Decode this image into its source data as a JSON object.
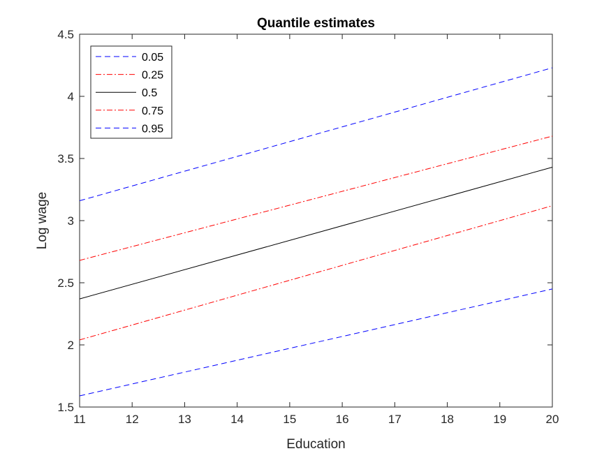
{
  "chart_data": {
    "type": "line",
    "title": "Quantile estimates",
    "xlabel": "Education",
    "ylabel": "Log wage",
    "xlim": [
      11,
      20
    ],
    "ylim": [
      1.5,
      4.5
    ],
    "x_ticks": [
      "11",
      "12",
      "13",
      "14",
      "15",
      "16",
      "17",
      "18",
      "19",
      "20"
    ],
    "y_ticks": [
      "1.5",
      "2",
      "2.5",
      "3",
      "3.5",
      "4",
      "4.5"
    ],
    "grid": false,
    "legend_position": "top-left",
    "x": [
      11,
      20
    ],
    "series": [
      {
        "name": "0.05",
        "values": [
          1.59,
          2.45
        ],
        "color": "#0000ff",
        "style": "dashed"
      },
      {
        "name": "0.25",
        "values": [
          2.04,
          3.12
        ],
        "color": "#ff0000",
        "style": "dashdot"
      },
      {
        "name": "0.5",
        "values": [
          2.37,
          3.43
        ],
        "color": "#000000",
        "style": "solid"
      },
      {
        "name": "0.75",
        "values": [
          2.68,
          3.68
        ],
        "color": "#ff0000",
        "style": "dashdot"
      },
      {
        "name": "0.95",
        "values": [
          3.16,
          4.23
        ],
        "color": "#0000ff",
        "style": "dashed"
      }
    ]
  }
}
